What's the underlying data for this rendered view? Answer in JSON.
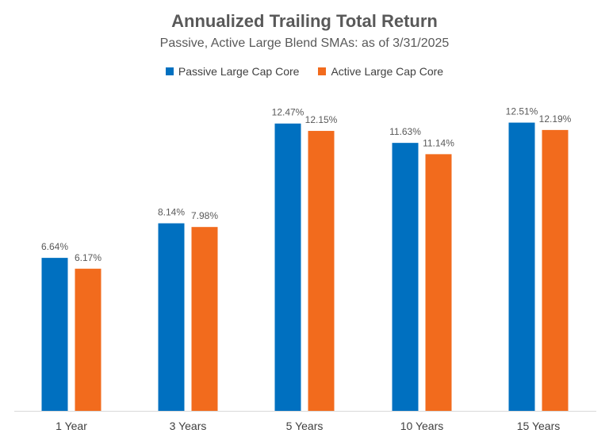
{
  "chart_data": {
    "type": "bar",
    "title": "Annualized Trailing Total Return",
    "subtitle": "Passive, Active Large Blend SMAs: as of 3/31/2025",
    "categories": [
      "1 Year",
      "3 Years",
      "5 Years",
      "10 Years",
      "15 Years"
    ],
    "series": [
      {
        "name": "Passive Large Cap Core",
        "color": "#0070C0",
        "values": [
          6.64,
          8.14,
          12.47,
          11.63,
          12.51
        ],
        "labels": [
          "6.64%",
          "8.14%",
          "12.47%",
          "11.63%",
          "12.51%"
        ]
      },
      {
        "name": "Active Large Cap Core",
        "color": "#F26B1D",
        "values": [
          6.17,
          7.98,
          12.15,
          11.14,
          12.19
        ],
        "labels": [
          "6.17%",
          "7.98%",
          "12.15%",
          "11.14%",
          "12.19%"
        ]
      }
    ],
    "xlabel": "",
    "ylabel": "",
    "ylim": [
      0,
      14
    ],
    "grid": false,
    "legend_position": "top"
  }
}
